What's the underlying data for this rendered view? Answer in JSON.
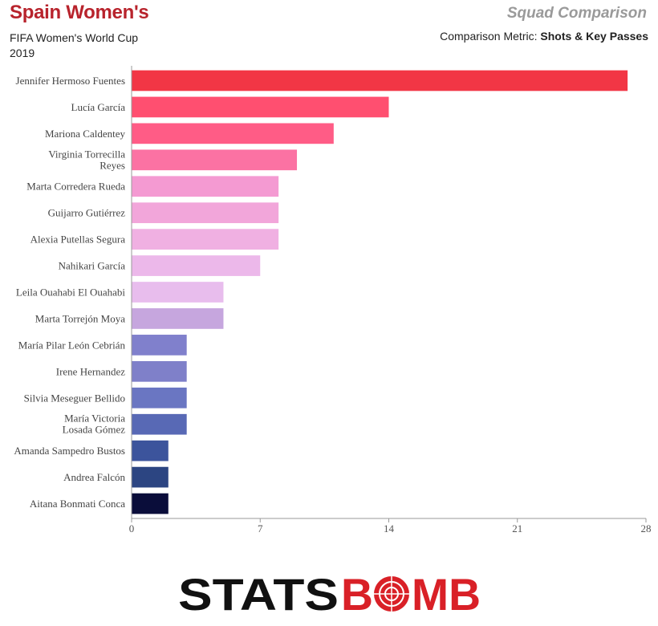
{
  "header": {
    "title": "Spain Women's",
    "competition": "FIFA Women's World Cup",
    "season": "2019",
    "comparison_title": "Squad Comparison",
    "metric_label": "Comparison Metric: ",
    "metric_value": "Shots & Key Passes"
  },
  "logo": {
    "stats": "STATS",
    "b": "B",
    "o": "O",
    "mb": "MB"
  },
  "chart_data": {
    "type": "bar",
    "orientation": "horizontal",
    "categories": [
      "Jennifer Hermoso Fuentes",
      "Lucía García",
      "Mariona Caldentey",
      "Virginia Torrecilla Reyes",
      "Marta Corredera Rueda",
      "Guijarro Gutiérrez",
      "Alexia Putellas Segura",
      "Nahikari García",
      "Leila Ouahabi El Ouahabi",
      "Marta Torrejón Moya",
      "María Pilar León Cebrián",
      "Irene Hernandez",
      "Silvia Meseguer Bellido",
      "María Victoria Losada Gómez",
      "Amanda Sampedro Bustos",
      "Andrea Falcón",
      "Aitana Bonmati Conca"
    ],
    "values": [
      27,
      14,
      11,
      9,
      8,
      8,
      8,
      7,
      5,
      5,
      3,
      3,
      3,
      3,
      2,
      2,
      2
    ],
    "colors": [
      "#f23645",
      "#ff4f70",
      "#ff5c86",
      "#fb72a3",
      "#f49ad2",
      "#f2a6da",
      "#f0b0e2",
      "#ecb8ea",
      "#e8bded",
      "#c6a6de",
      "#8080cc",
      "#7f80c9",
      "#6a76c2",
      "#5869b5",
      "#3c549c",
      "#2c4582",
      "#0a0d3a"
    ],
    "xticks": [
      0,
      7,
      14,
      21,
      28
    ],
    "xlim": [
      0,
      28
    ]
  }
}
